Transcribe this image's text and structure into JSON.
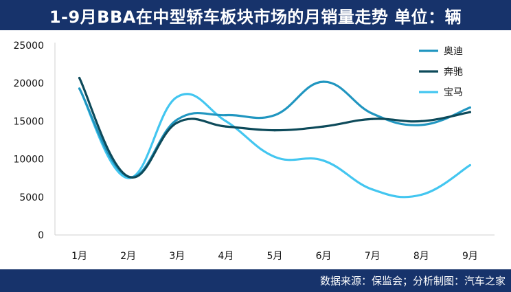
{
  "header": {
    "title": "1-9月BBA在中型轿车板块市场的月销量走势 单位：辆"
  },
  "footer": {
    "source": "数据来源：保监会；分析制图：汽车之家"
  },
  "chart_data": {
    "type": "line",
    "title": "1-9月BBA在中型轿车板块市场的月销量走势 单位：辆",
    "xlabel": "",
    "ylabel": "",
    "categories": [
      "1月",
      "2月",
      "3月",
      "4月",
      "5月",
      "6月",
      "7月",
      "8月",
      "9月"
    ],
    "ylim": [
      0,
      25000
    ],
    "yticks": [
      0,
      5000,
      10000,
      15000,
      20000,
      25000
    ],
    "grid": false,
    "legend_position": "top-right",
    "smooth": true,
    "series": [
      {
        "name": "奥迪",
        "color": "#2196c0",
        "values": [
          19300,
          7700,
          15200,
          15800,
          15800,
          20200,
          16000,
          14500,
          16800
        ]
      },
      {
        "name": "奔驰",
        "color": "#0d4a5a",
        "values": [
          20700,
          7700,
          14800,
          14300,
          13800,
          14300,
          15300,
          15000,
          16200
        ]
      },
      {
        "name": "宝马",
        "color": "#43c6f0",
        "values": [
          19300,
          7500,
          18200,
          15000,
          10300,
          9800,
          6000,
          5300,
          9200
        ]
      }
    ]
  }
}
